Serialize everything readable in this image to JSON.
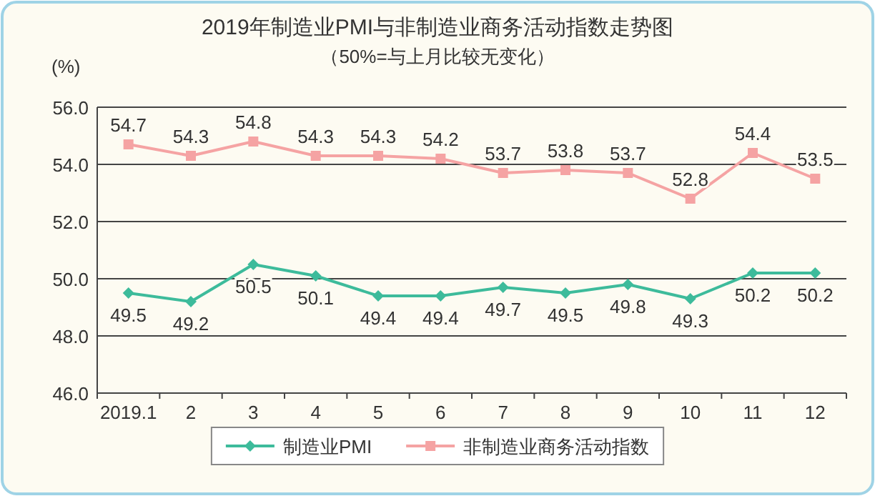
{
  "chart_data": {
    "type": "line",
    "title": "2019年制造业PMI与非制造业商务活动指数走势图",
    "subtitle": "（50%=与上月比较无变化）",
    "ylabel": "(%)",
    "categories": [
      "2019.1",
      "2",
      "3",
      "4",
      "5",
      "6",
      "7",
      "8",
      "9",
      "10",
      "11",
      "12"
    ],
    "series": [
      {
        "name": "制造业PMI",
        "color": "#3dbb9b",
        "marker": "diamond",
        "values": [
          49.5,
          49.2,
          50.5,
          50.1,
          49.4,
          49.4,
          49.7,
          49.5,
          49.8,
          49.3,
          50.2,
          50.2
        ]
      },
      {
        "name": "非制造业商务活动指数",
        "color": "#f5a3a3",
        "marker": "square",
        "values": [
          54.7,
          54.3,
          54.8,
          54.3,
          54.3,
          54.2,
          53.7,
          53.8,
          53.7,
          52.8,
          54.4,
          53.5
        ]
      }
    ],
    "ylim": [
      46,
      56
    ],
    "yticks": [
      {
        "value": 46,
        "label": "46.0"
      },
      {
        "value": 48,
        "label": "48.0"
      },
      {
        "value": 50,
        "label": "50.0"
      },
      {
        "value": 52,
        "label": "52.0"
      },
      {
        "value": 54,
        "label": "54.0"
      },
      {
        "value": 56,
        "label": "56.0"
      }
    ],
    "grid": "y",
    "legend": "bottom",
    "data_labels": true,
    "line_style": "solid"
  }
}
